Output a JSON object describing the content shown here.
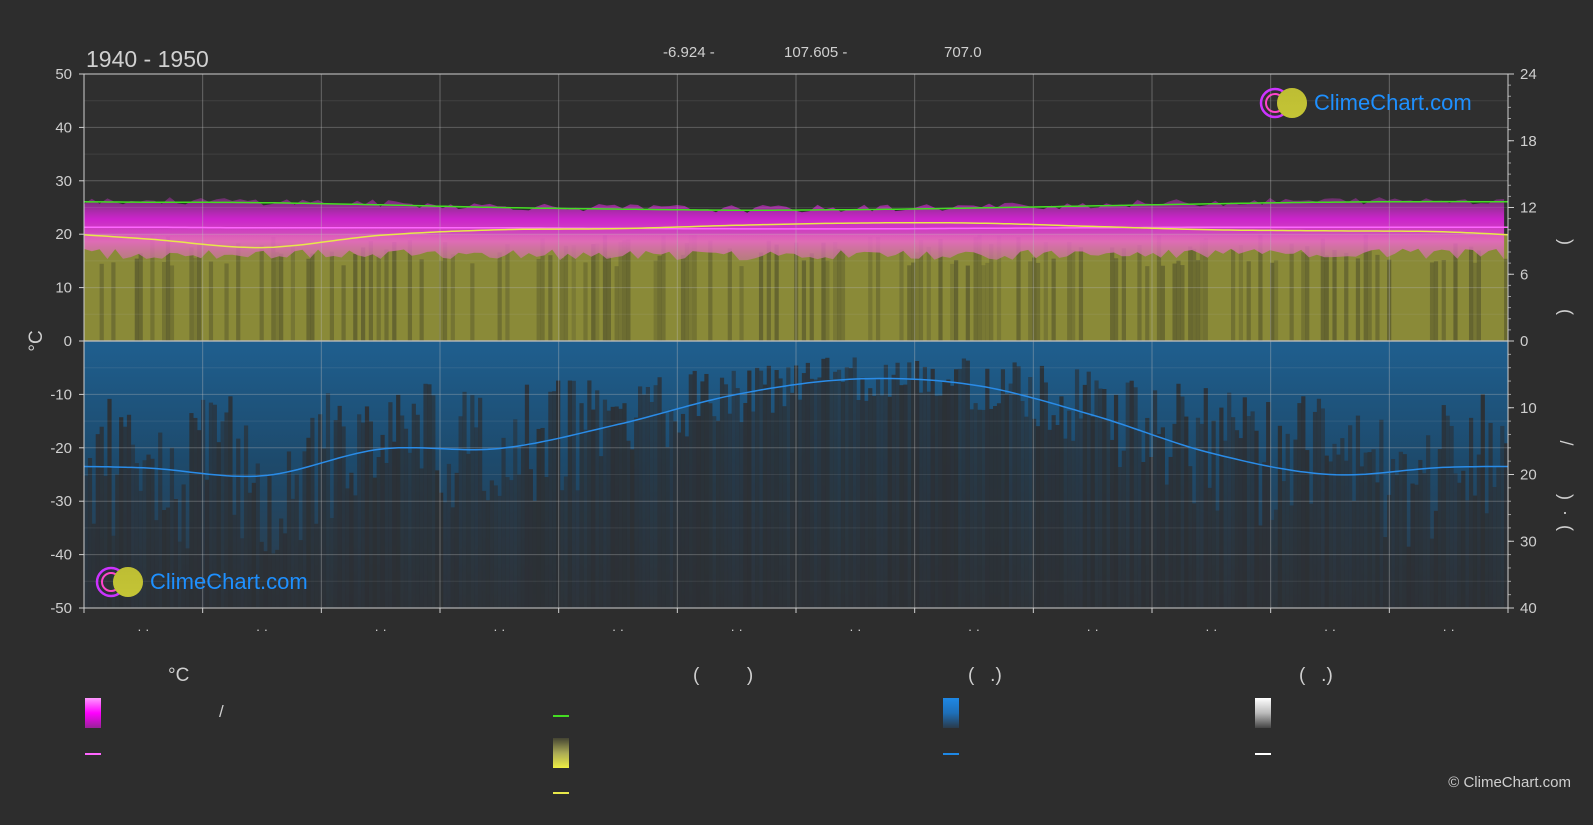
{
  "header": {
    "period": "1940 - 1950",
    "lat": "-6.924 -",
    "lon": "107.605 -",
    "elevation": "707.0"
  },
  "chart_data": {
    "type": "area",
    "x_ticks": [
      "· ·",
      "· ·",
      "· ·",
      "· ·",
      "· ·",
      "· ·",
      "· ·",
      "· ·",
      "· ·",
      "· ·",
      "· ·",
      "· ·"
    ],
    "left_axis": {
      "label": "°C",
      "ylim": [
        -50,
        50
      ],
      "ticks": [
        50,
        40,
        30,
        20,
        10,
        0,
        -10,
        -20,
        -30,
        -40,
        -50
      ]
    },
    "right_axis_top": {
      "label_parts": [
        "(",
        ")"
      ],
      "ylim": [
        0,
        24
      ],
      "ticks": [
        24,
        18,
        12,
        6,
        0
      ]
    },
    "right_axis_bottom": {
      "label_parts": [
        "/",
        "(",
        "·",
        ")"
      ],
      "ylim": [
        0,
        40
      ],
      "ticks": [
        0,
        10,
        20,
        30,
        40
      ]
    },
    "grid": true,
    "months_x": [
      0.5,
      1.5,
      2.5,
      3.5,
      4.5,
      5.5,
      6.5,
      7.5,
      8.5,
      9.5,
      10.5,
      11.5
    ],
    "series": [
      {
        "key": "max_temp",
        "color": "#44dd22",
        "axis": "left",
        "values": [
          26.0,
          25.9,
          25.5,
          25.0,
          24.7,
          24.5,
          24.6,
          24.9,
          25.3,
          25.7,
          26.0,
          26.1
        ]
      },
      {
        "key": "mean_temp",
        "color": "#ff66ff",
        "axis": "left",
        "values": [
          21.3,
          21.2,
          21.2,
          21.2,
          21.1,
          21.0,
          21.0,
          21.1,
          21.2,
          21.3,
          21.3,
          21.3
        ]
      },
      {
        "key": "sunshine_hours",
        "color": "#e8e84a",
        "axis": "right_top",
        "values": [
          9.2,
          8.4,
          9.5,
          10.0,
          10.1,
          10.4,
          10.6,
          10.6,
          10.3,
          10.0,
          9.9,
          9.8
        ]
      },
      {
        "key": "precipitation",
        "color": "#2a8ce8",
        "axis": "right_bottom",
        "values": [
          19.0,
          20.2,
          16.2,
          16.1,
          12.5,
          8.0,
          5.7,
          6.6,
          11.1,
          16.8,
          20.0,
          18.9
        ]
      }
    ]
  },
  "legend": {
    "col1": {
      "header": "°C",
      "row1_text": "/",
      "row2_text": ""
    },
    "col2": {
      "header": "(         )",
      "row1_text": "",
      "row2_text": "",
      "row3_text": ""
    },
    "col3": {
      "header": "(   .)",
      "row1_text": "",
      "row2_text": ""
    },
    "col4": {
      "header": "(   .)",
      "row1_text": "",
      "row2_text": ""
    },
    "colors": {
      "magenta": "#ff00ff",
      "green": "#44dd22",
      "pink": "#ff66ff",
      "yellow": "#e8e84a",
      "blue": "#1e88e5",
      "white": "#ffffff"
    }
  },
  "logo": {
    "text": "ClimeChart.com"
  },
  "copyright": "© ClimeChart.com"
}
